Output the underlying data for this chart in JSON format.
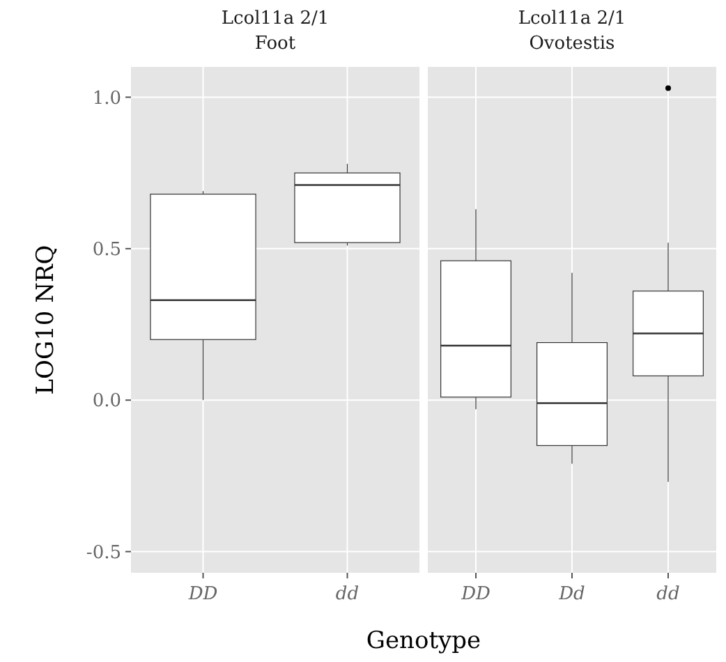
{
  "chart_data": [
    {
      "type": "box",
      "title": "Lcol11a 2/1",
      "subtitle": "Foot",
      "ylabel": "LOG10 NRQ",
      "xlabel": "Genotype",
      "categories": [
        "DD",
        "dd"
      ],
      "boxes": [
        {
          "low": 0.0,
          "q1": 0.2,
          "median": 0.33,
          "q3": 0.68,
          "high": 0.69
        },
        {
          "low": 0.51,
          "q1": 0.52,
          "median": 0.71,
          "q3": 0.75,
          "high": 0.78
        }
      ],
      "ylim": [
        -0.57,
        1.1
      ],
      "yticks": [
        -0.5,
        {
          "value": 0,
          "label": "0.0"
        },
        0.5,
        {
          "value": 1,
          "label": "1.0"
        }
      ],
      "grid": true
    },
    {
      "type": "box",
      "title": "Lcol11a 2/1",
      "subtitle": "Ovotestis",
      "categories": [
        "DD",
        "Dd",
        "dd"
      ],
      "boxes": [
        {
          "low": -0.03,
          "q1": 0.01,
          "median": 0.18,
          "q3": 0.46,
          "high": 0.63
        },
        {
          "low": -0.21,
          "q1": -0.15,
          "median": -0.01,
          "q3": 0.19,
          "high": 0.42
        },
        {
          "low": -0.27,
          "q1": 0.08,
          "median": 0.22,
          "q3": 0.36,
          "high": 0.52,
          "outliers": [
            1.03
          ]
        }
      ],
      "ylim": [
        -0.57,
        1.1
      ],
      "yticks": [
        -0.5,
        0,
        0.5,
        1
      ],
      "grid": true,
      "tick_labels": "x"
    }
  ]
}
